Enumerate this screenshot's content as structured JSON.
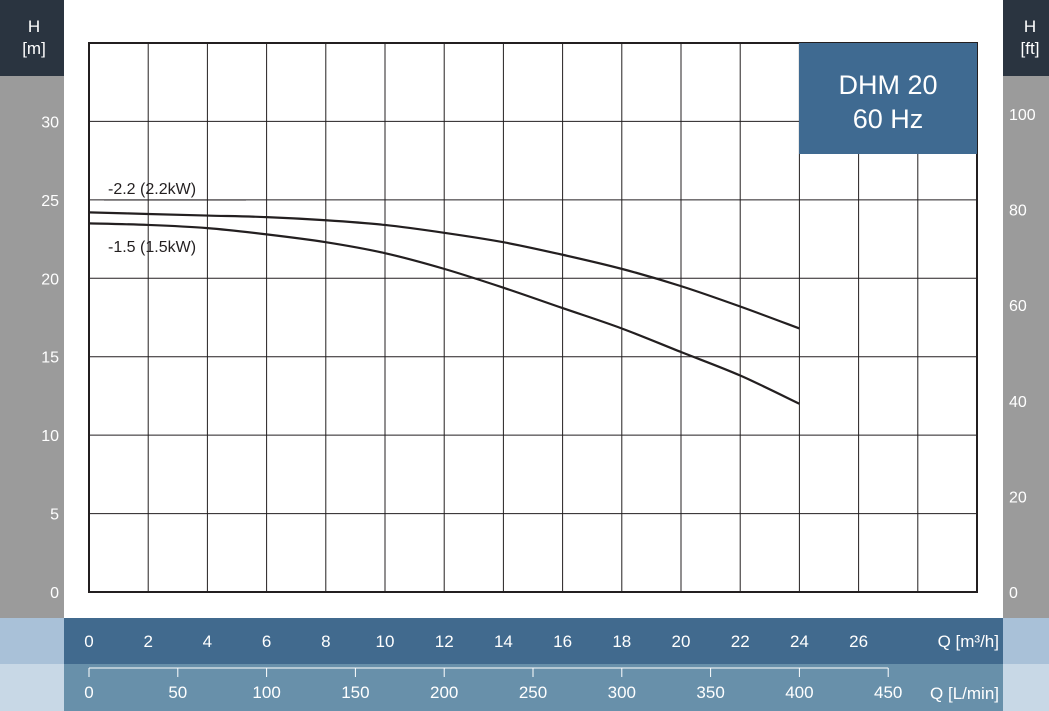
{
  "chart_data": {
    "type": "line",
    "title": "DHM 20",
    "subtitle": "60 Hz",
    "y_left": {
      "label_top": "H",
      "label_unit": "[m]",
      "range": [
        0,
        35
      ],
      "ticks": [
        0,
        5,
        10,
        15,
        20,
        25,
        30
      ]
    },
    "y_right": {
      "label_top": "H",
      "label_unit": "[ft]",
      "range": [
        0,
        114.83
      ],
      "ticks": [
        0,
        20,
        40,
        60,
        80,
        100
      ]
    },
    "x_primary": {
      "label": "Q [m³/h]",
      "range": [
        0,
        30
      ],
      "ticks": [
        0,
        2,
        4,
        6,
        8,
        10,
        12,
        14,
        16,
        18,
        20,
        22,
        24,
        26
      ]
    },
    "x_secondary": {
      "label": "Q [L/min]",
      "range": [
        0,
        500
      ],
      "ticks": [
        0,
        50,
        100,
        150,
        200,
        250,
        300,
        350,
        400,
        450
      ]
    },
    "grid": true,
    "series": [
      {
        "name": "-2.2 (2.2kW)",
        "x": [
          0,
          2,
          4,
          6,
          8,
          10,
          12,
          14,
          16,
          18,
          20,
          22,
          24
        ],
        "y": [
          24.2,
          24.1,
          24.0,
          23.9,
          23.7,
          23.4,
          22.9,
          22.3,
          21.5,
          20.6,
          19.5,
          18.2,
          16.8
        ]
      },
      {
        "name": "-1.5 (1.5kW)",
        "x": [
          0,
          2,
          4,
          6,
          8,
          10,
          12,
          14,
          16,
          18,
          20,
          22,
          24
        ],
        "y": [
          23.5,
          23.4,
          23.2,
          22.8,
          22.3,
          21.6,
          20.6,
          19.4,
          18.1,
          16.8,
          15.3,
          13.8,
          12.0
        ]
      }
    ]
  },
  "colors": {
    "axis_dark": "#2a3440",
    "axis_gray": "#9b9b9b",
    "title_box": "#3f6a91",
    "x_band_dark": "#416a8e",
    "x_band_mid": "#6890aa",
    "x_band_light": "#a9c1d8",
    "x_band_lighter": "#c8d8e6",
    "curve": "#231f20"
  }
}
